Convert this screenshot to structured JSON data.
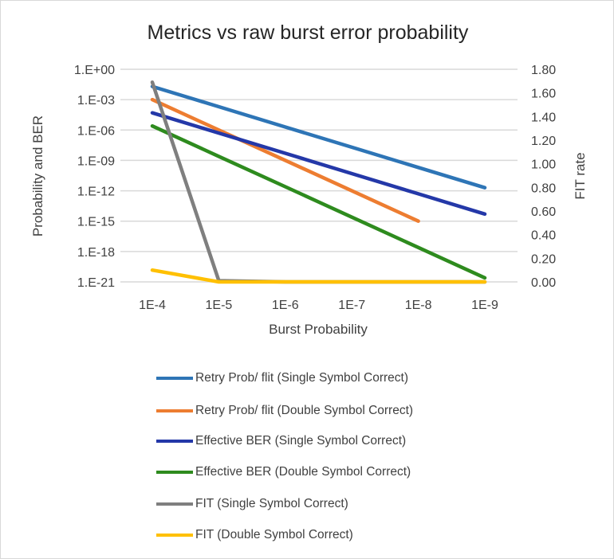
{
  "chart_data": {
    "type": "line",
    "title": "Metrics vs raw burst error probability",
    "xlabel": "Burst Probability",
    "ylabel": "Probability and BER",
    "y2label": "FIT rate",
    "categories": [
      "1E-4",
      "1E-5",
      "1E-6",
      "1E-7",
      "1E-8",
      "1E-9"
    ],
    "y_scale": "log",
    "ylim": [
      1e-21,
      1
    ],
    "y_ticks": [
      "1.E+00",
      "1.E-03",
      "1.E-06",
      "1.E-09",
      "1.E-12",
      "1.E-15",
      "1.E-18",
      "1.E-21"
    ],
    "y2lim": [
      0,
      1.8
    ],
    "y2_ticks": [
      "1.80",
      "1.60",
      "1.40",
      "1.20",
      "1.00",
      "0.80",
      "0.60",
      "0.40",
      "0.20",
      "0.00"
    ],
    "grid": true,
    "legend_position": "bottom",
    "series": [
      {
        "name": "Retry Prob/ flit (Single Symbol Correct)",
        "axis": "left",
        "color": "#2E75B6",
        "values": [
          0.02,
          0.0002,
          2e-06,
          2e-08,
          2e-10,
          2e-12
        ]
      },
      {
        "name": "Retry Prob/ flit (Double Symbol Correct)",
        "axis": "left",
        "color": "#ED7D31",
        "values": [
          0.001,
          1e-06,
          1e-09,
          1e-12,
          1e-15,
          null
        ]
      },
      {
        "name": "Effective BER (Single Symbol Correct)",
        "axis": "left",
        "color": "#2438A8",
        "values": [
          5e-05,
          5e-07,
          5e-09,
          5e-11,
          5e-13,
          5e-15
        ]
      },
      {
        "name": "Effective BER (Double Symbol Correct)",
        "axis": "left",
        "color": "#2E8B1E",
        "values": [
          2.5e-06,
          2.5e-09,
          2.5e-12,
          2.5e-15,
          2.5e-18,
          2.5e-21
        ]
      },
      {
        "name": "FIT (Single Symbol Correct)",
        "axis": "right",
        "color": "#7F7F7F",
        "values": [
          1.69,
          0.01,
          0,
          0,
          0,
          0
        ]
      },
      {
        "name": "FIT (Double Symbol Correct)",
        "axis": "right",
        "color": "#FFC000",
        "values": [
          0.1,
          0,
          0,
          0,
          0,
          0
        ]
      }
    ]
  }
}
